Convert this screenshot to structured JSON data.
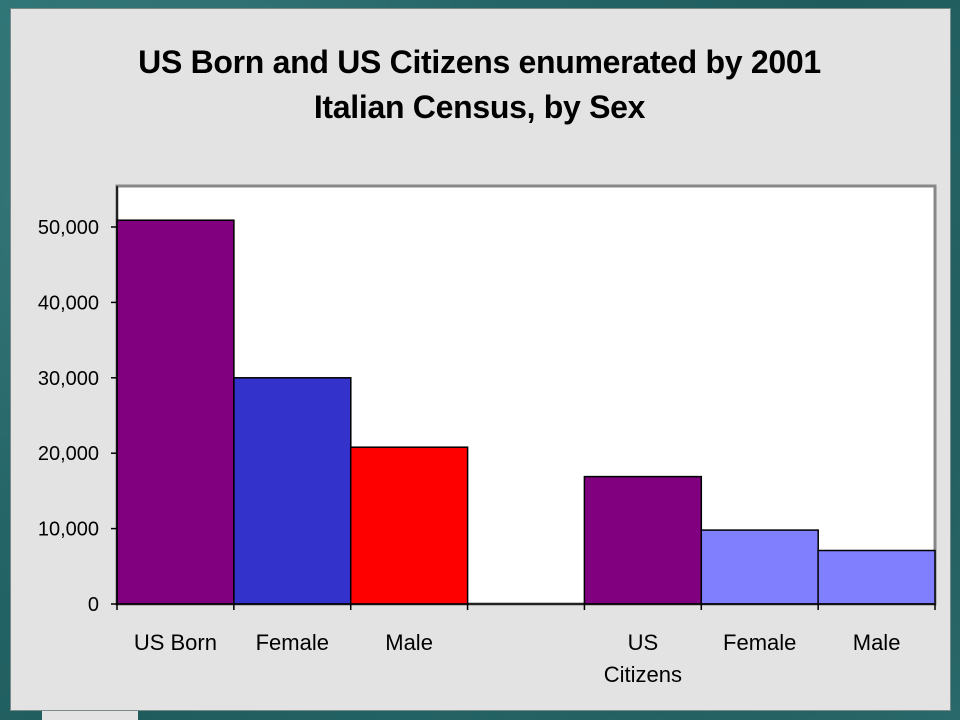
{
  "chart_data": {
    "type": "bar",
    "title": [
      "US Born and US Citizens enumerated by 2001",
      "Italian Census, by Sex"
    ],
    "xlabel": "",
    "ylabel": "",
    "ylim": [
      0,
      55000
    ],
    "yticks": [
      0,
      10000,
      20000,
      30000,
      40000,
      50000
    ],
    "ytick_labels": [
      "0",
      "10,000",
      "20,000",
      "30,000",
      "40,000",
      "50,000"
    ],
    "categories": [
      [
        "US Born"
      ],
      [
        "Female"
      ],
      [
        "Male"
      ],
      [
        ""
      ],
      [
        "US",
        "Citizens"
      ],
      [
        "Female"
      ],
      [
        "Male"
      ]
    ],
    "values": [
      50900,
      30000,
      20800,
      0,
      16900,
      9800,
      7100
    ],
    "bar_colors": [
      "#800080",
      "#3333cc",
      "#ff0000",
      "#800080",
      "#800080",
      "#8080ff",
      "#8080ff"
    ],
    "grid": false,
    "legend": "none"
  }
}
